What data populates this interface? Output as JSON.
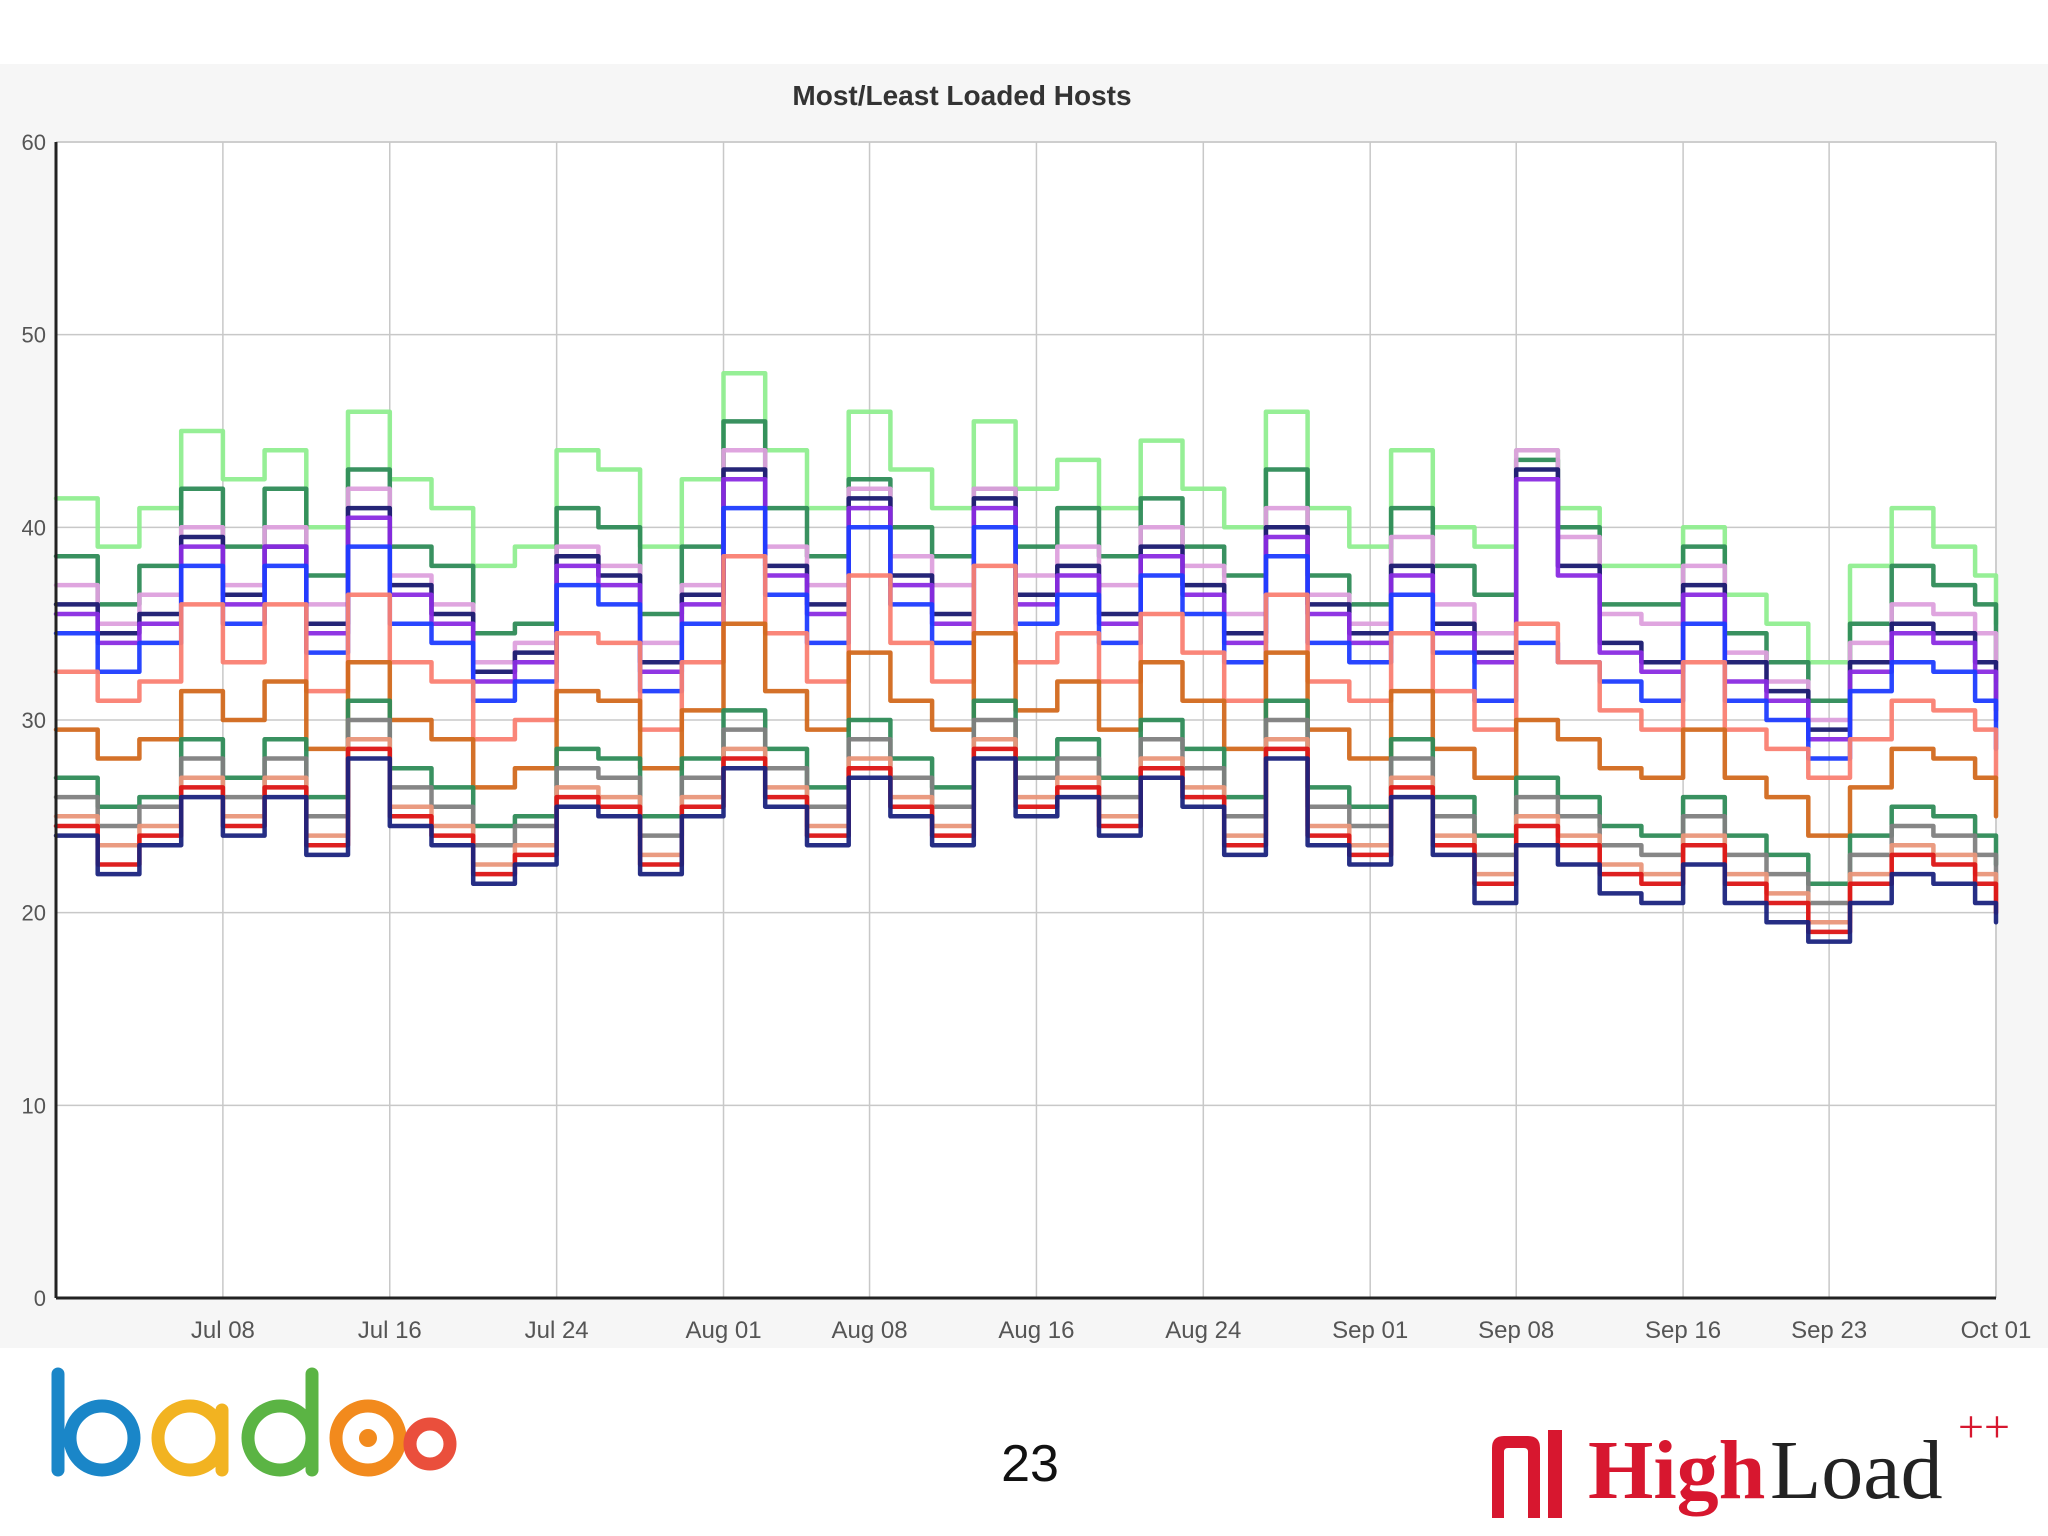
{
  "slide": {
    "page_number": "23"
  },
  "brand": {
    "left_logo_text": "badoo",
    "right_logo_word1": "High",
    "right_logo_word2": "Load",
    "right_logo_suffix": "++"
  },
  "colors": {
    "panel_bg": "#f6f6f6",
    "grid": "#c8c8c8",
    "highload_red": "#d7172f"
  },
  "chart_data": {
    "type": "line",
    "title": "Most/Least Loaded Hosts",
    "xlabel": "",
    "ylabel": "",
    "ylim": [
      0,
      60
    ],
    "yticks": [
      0,
      10,
      20,
      30,
      40,
      50,
      60
    ],
    "xlim": [
      "2015-06-30",
      "2015-10-01"
    ],
    "xticks": [
      {
        "label": "Jul 08",
        "date": "2015-07-08"
      },
      {
        "label": "Jul 16",
        "date": "2015-07-16"
      },
      {
        "label": "Jul 24",
        "date": "2015-07-24"
      },
      {
        "label": "Aug 01",
        "date": "2015-08-01"
      },
      {
        "label": "Aug 08",
        "date": "2015-08-08"
      },
      {
        "label": "Aug 16",
        "date": "2015-08-16"
      },
      {
        "label": "Aug 24",
        "date": "2015-08-24"
      },
      {
        "label": "Sep 01",
        "date": "2015-09-01"
      },
      {
        "label": "Sep 08",
        "date": "2015-09-08"
      },
      {
        "label": "Sep 16",
        "date": "2015-09-16"
      },
      {
        "label": "Sep 23",
        "date": "2015-09-23"
      },
      {
        "label": "Oct 01",
        "date": "2015-10-01"
      }
    ],
    "grid": true,
    "legend": "none",
    "x": [
      "2015-06-30",
      "2015-07-02",
      "2015-07-04",
      "2015-07-06",
      "2015-07-08",
      "2015-07-10",
      "2015-07-12",
      "2015-07-14",
      "2015-07-16",
      "2015-07-18",
      "2015-07-20",
      "2015-07-22",
      "2015-07-24",
      "2015-07-26",
      "2015-07-28",
      "2015-07-30",
      "2015-08-01",
      "2015-08-03",
      "2015-08-05",
      "2015-08-07",
      "2015-08-09",
      "2015-08-11",
      "2015-08-13",
      "2015-08-15",
      "2015-08-17",
      "2015-08-19",
      "2015-08-21",
      "2015-08-23",
      "2015-08-25",
      "2015-08-27",
      "2015-08-29",
      "2015-08-31",
      "2015-09-02",
      "2015-09-04",
      "2015-09-06",
      "2015-09-08",
      "2015-09-10",
      "2015-09-12",
      "2015-09-14",
      "2015-09-16",
      "2015-09-18",
      "2015-09-20",
      "2015-09-22",
      "2015-09-24",
      "2015-09-26",
      "2015-09-28",
      "2015-09-30",
      "2015-10-01"
    ],
    "series": [
      {
        "color": "#90ee90",
        "values": [
          41.5,
          39,
          41,
          45,
          42.5,
          44,
          40,
          46,
          42.5,
          41,
          38,
          39,
          44,
          43,
          39,
          42.5,
          48,
          44,
          41,
          46,
          43,
          41,
          45.5,
          42,
          43.5,
          41,
          44.5,
          42,
          40,
          46,
          41,
          39,
          44,
          40,
          39,
          44,
          41,
          38,
          38,
          40,
          36.5,
          35,
          33,
          38,
          41,
          39,
          37.5,
          35
        ]
      },
      {
        "color": "#2e8b57",
        "values": [
          38.5,
          36,
          38,
          42,
          39,
          42,
          37.5,
          43,
          39,
          38,
          34.5,
          35,
          41,
          40,
          35.5,
          39,
          45.5,
          41,
          38.5,
          42.5,
          40,
          38.5,
          42,
          39,
          41,
          38.5,
          41.5,
          39,
          37.5,
          43,
          37.5,
          36,
          41,
          38,
          36.5,
          43.5,
          40,
          36,
          36,
          39,
          34.5,
          33,
          31,
          35,
          38,
          37,
          36,
          33
        ]
      },
      {
        "color": "#dda0dd",
        "values": [
          37,
          35,
          36.5,
          40,
          37,
          40,
          36,
          42,
          37.5,
          36,
          33,
          34,
          39,
          38,
          34,
          37,
          44,
          39,
          37,
          42,
          38.5,
          37,
          42,
          37.5,
          39,
          37,
          40,
          38,
          35.5,
          41,
          36.5,
          35,
          39.5,
          36,
          34.5,
          44,
          39.5,
          35.5,
          35,
          38,
          33.5,
          32,
          30,
          34,
          36,
          35.5,
          34.5,
          32
        ]
      },
      {
        "color": "#191970",
        "values": [
          36,
          34.5,
          35.5,
          39.5,
          36.5,
          39,
          35,
          41,
          37,
          35.5,
          32.5,
          33.5,
          38.5,
          37.5,
          33,
          36.5,
          43,
          38,
          36,
          41.5,
          37.5,
          35.5,
          41.5,
          36.5,
          38,
          35.5,
          39,
          37,
          34.5,
          40,
          36,
          34.5,
          38,
          35,
          33.5,
          43,
          38,
          34,
          33,
          37,
          33,
          31.5,
          29.5,
          33,
          35,
          34.5,
          33,
          30.5
        ]
      },
      {
        "color": "#8a2be2",
        "values": [
          35.5,
          34,
          35,
          39,
          36,
          39,
          34.5,
          40.5,
          36.5,
          35,
          32,
          33,
          38,
          37,
          32.5,
          36,
          42.5,
          37.5,
          35.5,
          41,
          37,
          35,
          41,
          36,
          37.5,
          35,
          38.5,
          36.5,
          34,
          39.5,
          35.5,
          34,
          37.5,
          34.5,
          33,
          42.5,
          37.5,
          33.5,
          32.5,
          36.5,
          32,
          31,
          29,
          32.5,
          34.5,
          34,
          32.5,
          30
        ]
      },
      {
        "color": "#1e3cff",
        "values": [
          34.5,
          32.5,
          34,
          38,
          35,
          38,
          33.5,
          39,
          35,
          34,
          31,
          32,
          37,
          36,
          31.5,
          35,
          41,
          36.5,
          34,
          40,
          36,
          34,
          40,
          35,
          36.5,
          34,
          37.5,
          35.5,
          33,
          38.5,
          34,
          33,
          36.5,
          33.5,
          31,
          34,
          33,
          32,
          31,
          35,
          31,
          30,
          28,
          31.5,
          33,
          32.5,
          31,
          28.5
        ]
      },
      {
        "color": "#fa8072",
        "values": [
          32.5,
          31,
          32,
          36,
          33,
          36,
          31.5,
          36.5,
          33,
          32,
          29,
          30,
          34.5,
          34,
          29.5,
          33,
          38.5,
          34.5,
          32,
          37.5,
          34,
          32,
          38,
          33,
          34.5,
          32,
          35.5,
          33.5,
          31,
          36.5,
          32,
          31,
          34.5,
          31.5,
          29.5,
          35,
          33,
          30.5,
          29.5,
          33,
          29.5,
          28.5,
          27,
          29,
          31,
          30.5,
          29.5,
          27
        ]
      },
      {
        "color": "#d2691e",
        "values": [
          29.5,
          28,
          29,
          31.5,
          30,
          32,
          28.5,
          33,
          30,
          29,
          26.5,
          27.5,
          31.5,
          31,
          27.5,
          30.5,
          35,
          31.5,
          29.5,
          33.5,
          31,
          29.5,
          34.5,
          30.5,
          32,
          29.5,
          33,
          31,
          28.5,
          33.5,
          29.5,
          28,
          31.5,
          28.5,
          27,
          30,
          29,
          27.5,
          27,
          29.5,
          27,
          26,
          24,
          26.5,
          28.5,
          28,
          27,
          25
        ]
      },
      {
        "color": "#2e8b57",
        "values": [
          27,
          25.5,
          26,
          29,
          27,
          29,
          26,
          31,
          27.5,
          26.5,
          24.5,
          25,
          28.5,
          28,
          25,
          28,
          30.5,
          28.5,
          26.5,
          30,
          28,
          26.5,
          31,
          28,
          29,
          27,
          30,
          28.5,
          26,
          31,
          26.5,
          25.5,
          29,
          26,
          24,
          27,
          26,
          24.5,
          24,
          26,
          24,
          23,
          21.5,
          24,
          25.5,
          25,
          24,
          22.5
        ]
      },
      {
        "color": "#808080",
        "values": [
          26,
          24.5,
          25.5,
          28,
          26,
          28,
          25,
          30,
          26.5,
          25.5,
          23.5,
          24.5,
          27.5,
          27,
          24,
          27,
          29.5,
          27.5,
          25.5,
          29,
          27,
          25.5,
          30,
          27,
          28,
          26,
          29,
          27.5,
          25,
          30,
          25.5,
          24.5,
          28,
          25,
          23,
          26,
          25,
          23.5,
          23,
          25,
          23,
          22,
          20.5,
          23,
          24.5,
          24,
          23,
          21.5
        ]
      },
      {
        "color": "#e9967a",
        "values": [
          25,
          23.5,
          24.5,
          27,
          25,
          27,
          24,
          29,
          25.5,
          24.5,
          22.5,
          23.5,
          26.5,
          26,
          23,
          26,
          28.5,
          26.5,
          24.5,
          28,
          26,
          24.5,
          29,
          26,
          27,
          25,
          28,
          26.5,
          24,
          29,
          24.5,
          23.5,
          27,
          24,
          22,
          25,
          24,
          22.5,
          22,
          24,
          22,
          21,
          19.5,
          22,
          23.5,
          23,
          22,
          20.5
        ]
      },
      {
        "color": "#dc1414",
        "values": [
          24.5,
          22.5,
          24,
          26.5,
          24.5,
          26.5,
          23.5,
          28.5,
          25,
          24,
          22,
          23,
          26,
          25.5,
          22.5,
          25.5,
          28,
          26,
          24,
          27.5,
          25.5,
          24,
          28.5,
          25.5,
          26.5,
          24.5,
          27.5,
          26,
          23.5,
          28.5,
          24,
          23,
          26.5,
          23.5,
          21.5,
          24.5,
          23.5,
          22,
          21.5,
          23.5,
          21.5,
          20.5,
          19,
          21.5,
          23,
          22.5,
          21.5,
          20
        ]
      },
      {
        "color": "#1a237e",
        "values": [
          24,
          22,
          23.5,
          26,
          24,
          26,
          23,
          28,
          24.5,
          23.5,
          21.5,
          22.5,
          25.5,
          25,
          22,
          25,
          27.5,
          25.5,
          23.5,
          27,
          25,
          23.5,
          28,
          25,
          26,
          24,
          27,
          25.5,
          23,
          28,
          23.5,
          22.5,
          26,
          23,
          20.5,
          23.5,
          22.5,
          21,
          20.5,
          22.5,
          20.5,
          19.5,
          18.5,
          20.5,
          22,
          21.5,
          20.5,
          19.5
        ]
      }
    ]
  }
}
